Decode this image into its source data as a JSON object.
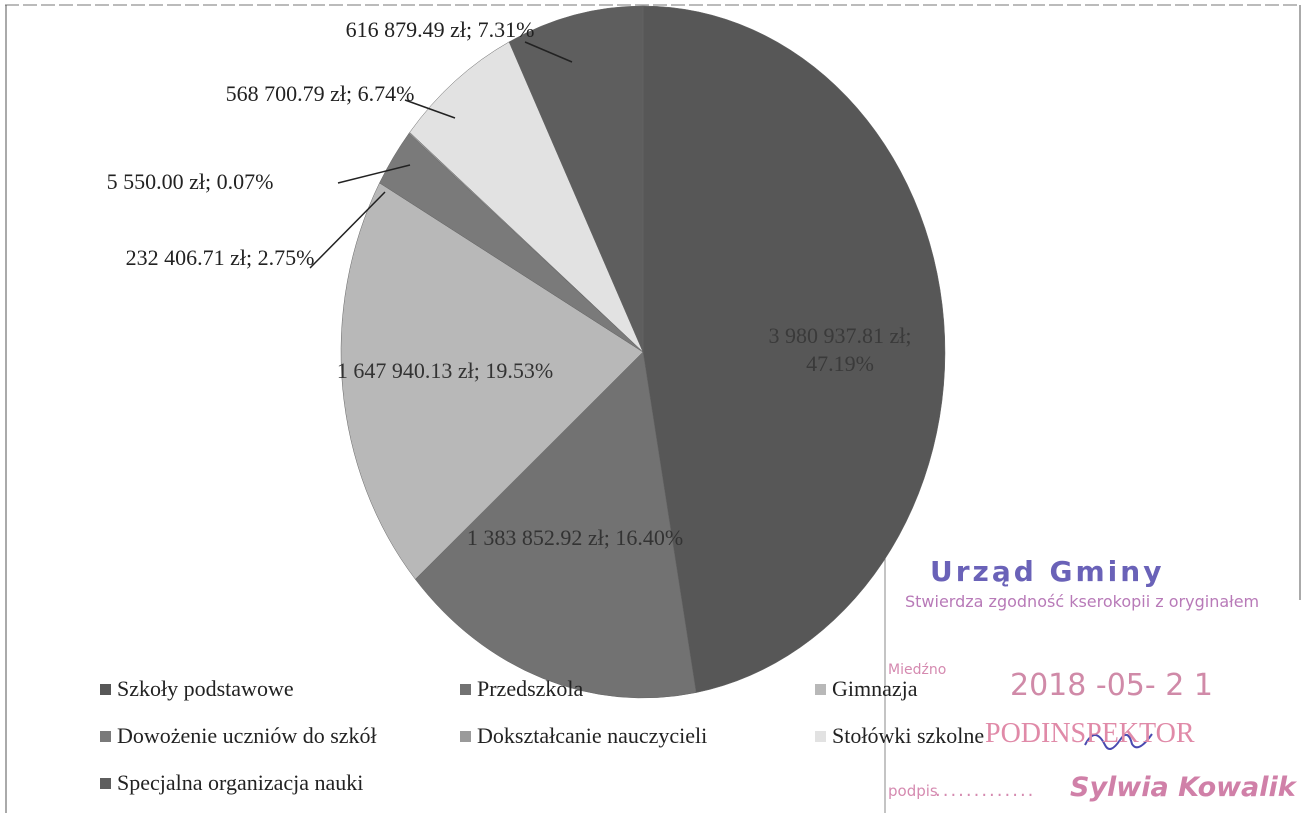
{
  "chart_data": {
    "type": "pie",
    "categories": [
      "Szkoły podstawowe",
      "Przedszkola",
      "Gimnazja",
      "Dowożenie uczniów do szkół",
      "Dokształcanie nauczycieli",
      "Stołówki szkolne",
      "Specjalna organizacja nauki"
    ],
    "values": [
      3980937.81,
      1383852.92,
      1647940.13,
      232406.71,
      5550.0,
      568700.79,
      616879.49
    ],
    "value_labels": [
      "3 980 937.81 zł; 47.19%",
      "1 383 852.92 zł; 16.40%",
      "1 647 940.13 zł; 19.53%",
      "232 406.71 zł; 2.75%",
      "5 550.00 zł; 0.07%",
      "568 700.79 zł; 6.74%",
      "616 879.49 zł; 7.31%"
    ],
    "colors": [
      "#575757",
      "#727272",
      "#b8b8b8",
      "#7a7a7a",
      "#9a9a9a",
      "#e2e2e2",
      "#5e5e5e"
    ],
    "legend": "bottom"
  },
  "stamp": {
    "office": "Urząd Gminy",
    "certification": "Stwierdza zgodność kserokopii z oryginałem",
    "place": "Miedźno",
    "date": "2018 -05- 2 1",
    "position": "PODINSPEKTOR",
    "signature_label": "podpis",
    "name": "Sylwia Kowalik"
  }
}
